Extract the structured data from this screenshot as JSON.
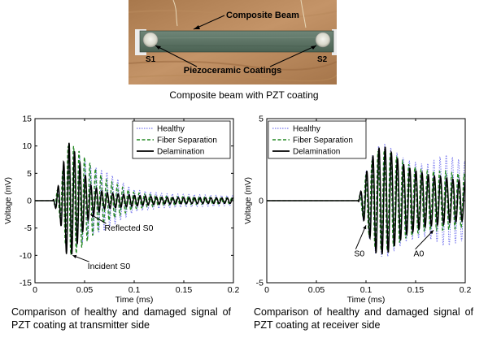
{
  "photo": {
    "labels": {
      "beam": "Composite Beam",
      "s1": "S1",
      "s2": "S2",
      "coatings": "Piezoceramic Coatings"
    },
    "caption": "Composite beam with PZT coating"
  },
  "chart_data": [
    {
      "type": "line",
      "xlabel": "Time (ms)",
      "ylabel": "Voltage (mV)",
      "xlim": [
        0,
        0.2
      ],
      "ylim": [
        -15,
        15
      ],
      "x_ticks": [
        0,
        0.05,
        0.1,
        0.15,
        0.2
      ],
      "x_tick_labels": [
        "0",
        "0.05",
        "0.1",
        "0.15",
        "0.2"
      ],
      "y_ticks": [
        -15,
        -10,
        -5,
        0,
        5,
        10,
        15
      ],
      "y_tick_labels": [
        "-15",
        "-10",
        "-5",
        "0",
        "5",
        "10",
        "15"
      ],
      "grid": false,
      "legend": "top-right",
      "series": [
        {
          "name": "Healthy",
          "style": "dotted",
          "color": "#7777ee",
          "envelope": [
            [
              0.018,
              0
            ],
            [
              0.025,
              2.5
            ],
            [
              0.033,
              10
            ],
            [
              0.04,
              9
            ],
            [
              0.055,
              6.5
            ],
            [
              0.07,
              5.5
            ],
            [
              0.1,
              2
            ],
            [
              0.13,
              1.3
            ],
            [
              0.2,
              0.9
            ]
          ],
          "carrier_period_ms": 0.0055,
          "phase": 0.4
        },
        {
          "name": "Fiber Separation",
          "style": "dashed",
          "color": "#228822",
          "envelope": [
            [
              0.018,
              0
            ],
            [
              0.025,
              3
            ],
            [
              0.033,
              10
            ],
            [
              0.04,
              10
            ],
            [
              0.055,
              7
            ],
            [
              0.07,
              4
            ],
            [
              0.1,
              1.5
            ],
            [
              0.13,
              0.8
            ],
            [
              0.2,
              0.5
            ]
          ],
          "carrier_period_ms": 0.0055,
          "phase": 1.1
        },
        {
          "name": "Delamination",
          "style": "solid",
          "color": "#000000",
          "envelope": [
            [
              0.018,
              0
            ],
            [
              0.025,
              3.5
            ],
            [
              0.033,
              11
            ],
            [
              0.04,
              9
            ],
            [
              0.055,
              3
            ],
            [
              0.07,
              1.5
            ],
            [
              0.1,
              1
            ],
            [
              0.13,
              0.6
            ],
            [
              0.2,
              0.5
            ]
          ],
          "carrier_period_ms": 0.0055,
          "phase": 0
        }
      ],
      "annotations": [
        {
          "text": "Reflected S0",
          "x": 0.07,
          "y": -5.5,
          "arrow_to": [
            0.056,
            -2.5
          ]
        },
        {
          "text": "Incident S0",
          "x": 0.053,
          "y": -12.5,
          "arrow_to": [
            0.038,
            -10
          ]
        }
      ],
      "caption": "Comparison of healthy and damaged signal of PZT coating at transmitter side"
    },
    {
      "type": "line",
      "xlabel": "Time (ms)",
      "ylabel": "Voltage (mV)",
      "xlim": [
        0,
        0.2
      ],
      "ylim": [
        -5,
        5
      ],
      "x_ticks": [
        0,
        0.05,
        0.1,
        0.15,
        0.2
      ],
      "x_tick_labels": [
        "0",
        "0.05",
        "0.1",
        "0.15",
        "0.2"
      ],
      "y_ticks": [
        -5,
        0,
        5
      ],
      "y_tick_labels": [
        "-5",
        "0",
        "5"
      ],
      "grid": false,
      "legend": "top-left",
      "series": [
        {
          "name": "Healthy",
          "style": "dotted",
          "color": "#7777ee",
          "envelope": [
            [
              0.092,
              0
            ],
            [
              0.1,
              1.8
            ],
            [
              0.11,
              3.3
            ],
            [
              0.12,
              3.5
            ],
            [
              0.14,
              2.5
            ],
            [
              0.16,
              2.2
            ],
            [
              0.18,
              2.8
            ],
            [
              0.2,
              2.4
            ]
          ],
          "carrier_period_ms": 0.0062,
          "phase": 0.5
        },
        {
          "name": "Fiber Separation",
          "style": "dashed",
          "color": "#228822",
          "envelope": [
            [
              0.092,
              0
            ],
            [
              0.1,
              1.6
            ],
            [
              0.11,
              3
            ],
            [
              0.12,
              3.1
            ],
            [
              0.14,
              2.3
            ],
            [
              0.16,
              1.8
            ],
            [
              0.18,
              1.8
            ],
            [
              0.2,
              1.6
            ]
          ],
          "carrier_period_ms": 0.0062,
          "phase": 1.0
        },
        {
          "name": "Delamination",
          "style": "solid",
          "color": "#000000",
          "envelope": [
            [
              0.092,
              0
            ],
            [
              0.1,
              1.7
            ],
            [
              0.11,
              3.2
            ],
            [
              0.12,
              3.3
            ],
            [
              0.14,
              2.1
            ],
            [
              0.16,
              1.6
            ],
            [
              0.18,
              1.4
            ],
            [
              0.2,
              1.2
            ]
          ],
          "carrier_period_ms": 0.0062,
          "phase": 0
        }
      ],
      "annotations": [
        {
          "text": "S0",
          "x": 0.088,
          "y": -3.4,
          "arrow_to": [
            0.1,
            -1.5
          ]
        },
        {
          "text": "A0",
          "x": 0.148,
          "y": -3.4,
          "arrow_to": [
            0.168,
            -1.8
          ]
        }
      ],
      "caption": "Comparison of healthy and damaged signal of PZT coating at receiver side"
    }
  ]
}
